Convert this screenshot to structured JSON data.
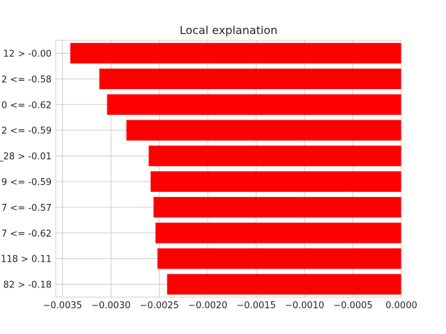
{
  "chart_data": {
    "type": "bar",
    "orientation": "horizontal",
    "title": "Local explanation",
    "xlabel": "",
    "ylabel": "",
    "grid": true,
    "xlim": [
      -0.00357,
      0.0
    ],
    "bar_color": "#ff0000",
    "categories": [
      "12 > -0.00",
      "2 <= -0.58",
      "0 <= -0.62",
      "2 <= -0.59",
      "_28 > -0.01",
      "9 <= -0.59",
      "7 <= -0.57",
      "7 <= -0.62",
      "118 > 0.11",
      "82 > -0.18"
    ],
    "values": [
      -0.00342,
      -0.00312,
      -0.00304,
      -0.00284,
      -0.00261,
      -0.00259,
      -0.00256,
      -0.00254,
      -0.00252,
      -0.00242
    ],
    "xticks": [
      -0.0035,
      -0.003,
      -0.0025,
      -0.002,
      -0.0015,
      -0.001,
      -0.0005,
      0.0
    ],
    "xtick_labels": [
      "−0.0035",
      "−0.0030",
      "−0.0025",
      "−0.0020",
      "−0.0015",
      "−0.0010",
      "−0.0005",
      "0.0000"
    ]
  }
}
